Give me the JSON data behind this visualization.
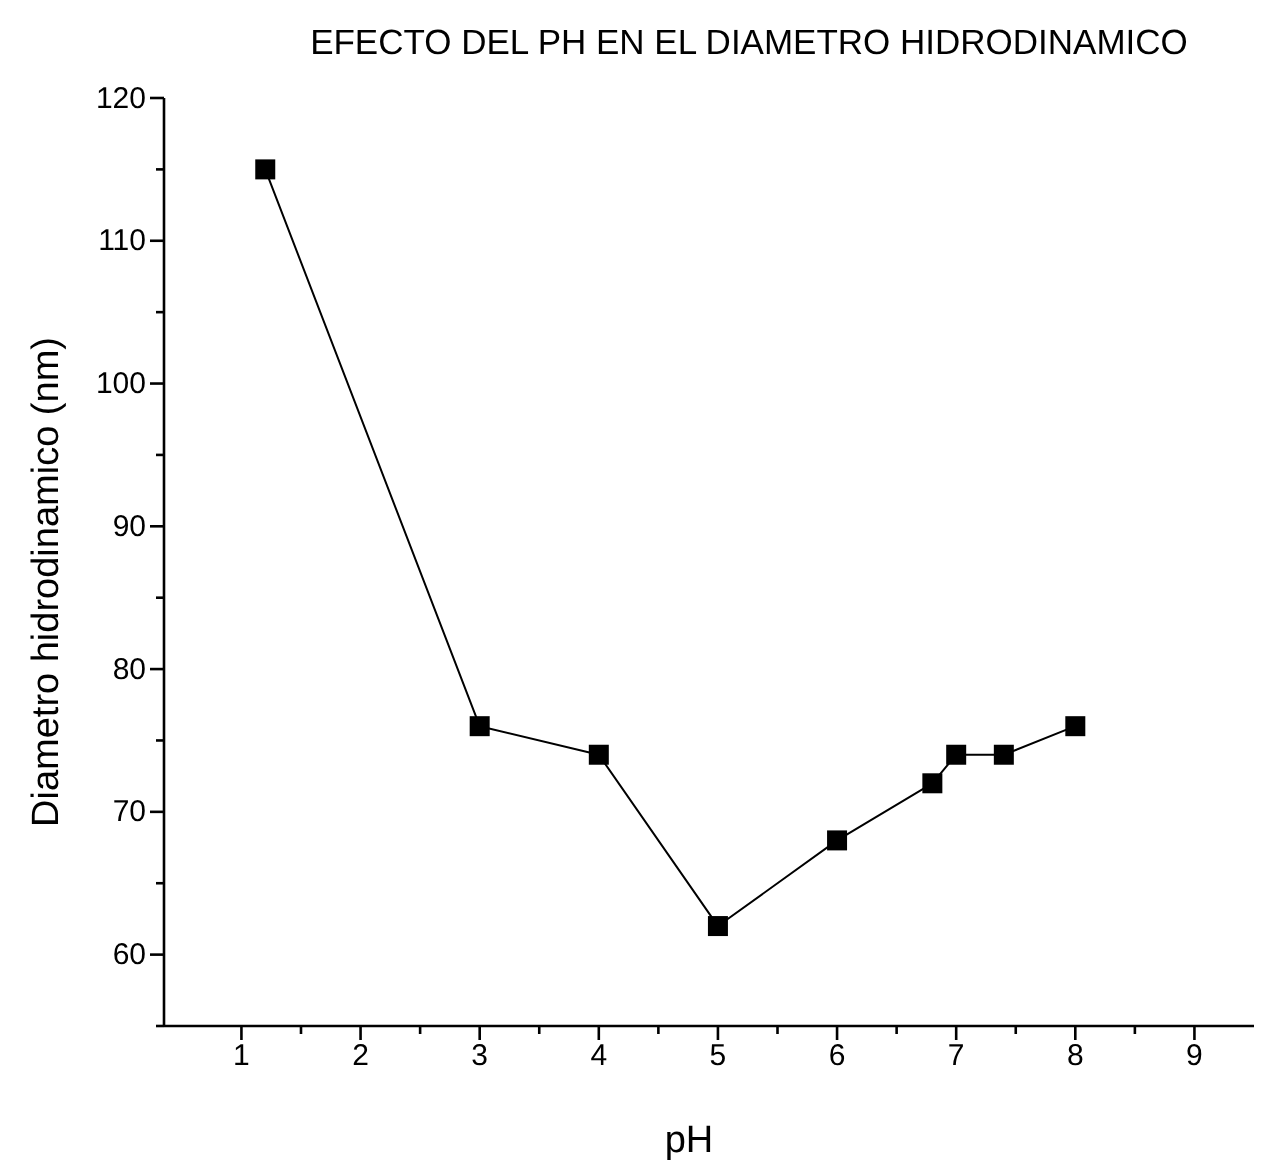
{
  "chart_data": {
    "type": "line",
    "title": "EFECTO DEL PH EN EL DIAMETRO HIDRODINAMICO",
    "xlabel": "pH",
    "ylabel": "Diametro hidrodinamico (nm)",
    "x": [
      1.2,
      3,
      4,
      5,
      6,
      6.8,
      7,
      7.4,
      8
    ],
    "series": [
      {
        "color": "#000000",
        "values": [
          115,
          76,
          74,
          62,
          68,
          72,
          74,
          74,
          76
        ]
      }
    ],
    "xlim": [
      0.35,
      9.5
    ],
    "ylim": [
      55,
      120
    ],
    "xticks": [
      1,
      {
        "value": 1.5,
        "label": null
      },
      2,
      {
        "value": 2.5,
        "label": null
      },
      3,
      {
        "value": 3.5,
        "label": null
      },
      4,
      {
        "value": 4.5,
        "label": null
      },
      5,
      {
        "value": 5.5,
        "label": null
      },
      6,
      {
        "value": 6.5,
        "label": null
      },
      7,
      {
        "value": 7.5,
        "label": null
      },
      8,
      {
        "value": 8.5,
        "label": null
      },
      9
    ],
    "yticks": [
      {
        "value": 55,
        "label": null
      },
      60,
      {
        "value": 65,
        "label": null
      },
      70,
      {
        "value": 75,
        "label": null
      },
      80,
      {
        "value": 85,
        "label": null
      },
      90,
      {
        "value": 95,
        "label": null
      },
      100,
      {
        "value": 105,
        "label": null
      },
      110,
      {
        "value": 115,
        "label": null
      },
      120
    ],
    "marker": "square",
    "line_style": "solid"
  }
}
